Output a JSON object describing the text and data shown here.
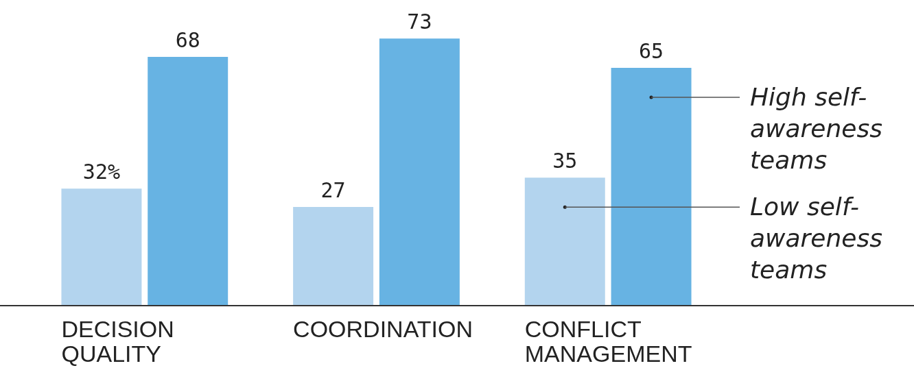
{
  "chart_data": {
    "type": "bar",
    "categories": [
      "DECISION QUALITY",
      "COORDINATION",
      "CONFLICT MANAGEMENT"
    ],
    "series": [
      {
        "name": "Low self-awareness teams",
        "color": "#b3d4ee",
        "values": [
          32,
          27,
          35
        ],
        "value_labels": [
          "32%",
          "27",
          "35"
        ]
      },
      {
        "name": "High self-awareness teams",
        "color": "#67b3e3",
        "values": [
          68,
          73,
          65
        ],
        "value_labels": [
          "68",
          "73",
          "65"
        ]
      }
    ],
    "legend": false
  }
}
